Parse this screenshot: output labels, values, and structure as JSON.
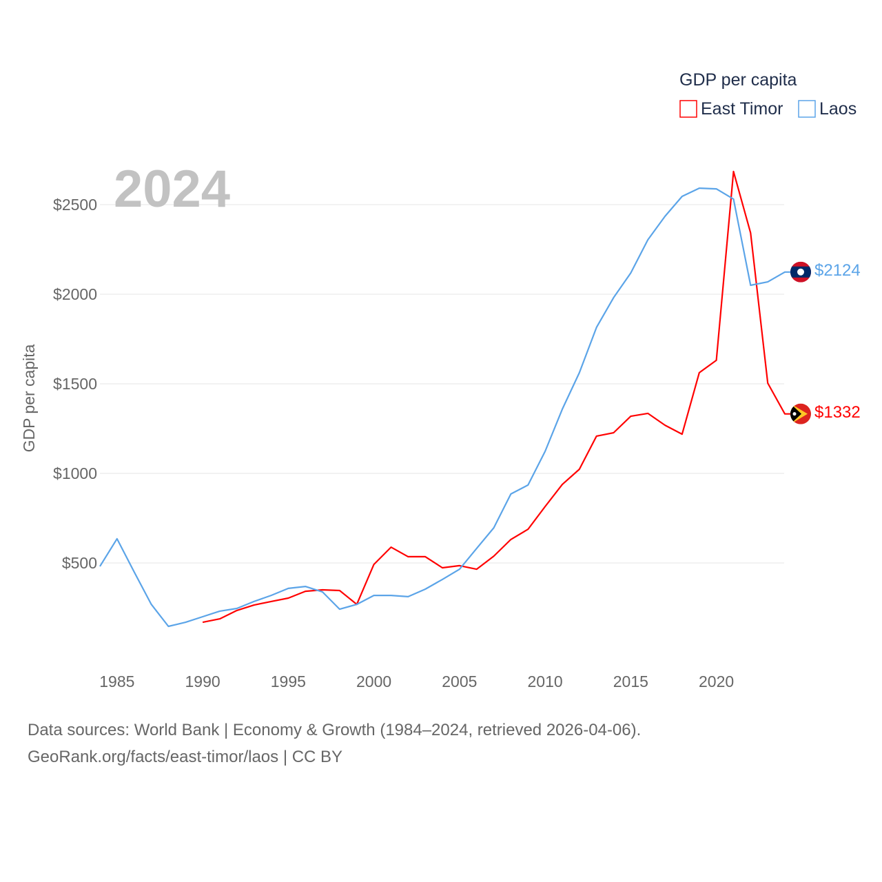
{
  "chart_data": {
    "type": "line",
    "title": "",
    "year_label": "2024",
    "xlabel": "",
    "ylabel": "GDP per capita",
    "xlim": [
      1984,
      2024
    ],
    "ylim": [
      0,
      2700
    ],
    "x_ticks": [
      "1985",
      "1990",
      "1995",
      "2000",
      "2005",
      "2010",
      "2015",
      "2020"
    ],
    "y_ticks": [
      {
        "v": 500,
        "label": "$500"
      },
      {
        "v": 1000,
        "label": "$1000"
      },
      {
        "v": 1500,
        "label": "$1500"
      },
      {
        "v": 2000,
        "label": "$2000"
      },
      {
        "v": 2500,
        "label": "$2500"
      }
    ],
    "grid": true,
    "legend": {
      "title": "GDP per capita",
      "placement": "top-right"
    },
    "series": [
      {
        "name": "East Timor",
        "color": "#ff0000",
        "end_label": "$1332",
        "start_year": 1990,
        "values": [
          169,
          188,
          235,
          265,
          285,
          304,
          342,
          350,
          346,
          269,
          492,
          588,
          535,
          535,
          473,
          485,
          465,
          538,
          631,
          688,
          815,
          938,
          1023,
          1208,
          1227,
          1319,
          1335,
          1269,
          1219,
          1562,
          1631,
          2685,
          2342,
          1504,
          1332
        ]
      },
      {
        "name": "Laos",
        "color": "#5ba4e8",
        "end_label": "$2124",
        "start_year": 1984,
        "values": [
          481,
          635,
          450,
          269,
          146,
          169,
          200,
          231,
          246,
          285,
          319,
          358,
          369,
          338,
          242,
          269,
          319,
          319,
          312,
          354,
          408,
          465,
          581,
          696,
          885,
          935,
          1123,
          1358,
          1562,
          1815,
          1981,
          2119,
          2304,
          2435,
          2546,
          2592,
          2588,
          2531,
          2050,
          2069,
          2124
        ]
      }
    ]
  },
  "footer": {
    "line1": "Data sources: World Bank | Economy & Growth (1984–2024, retrieved 2026-04-06).",
    "line2": "GeoRank.org/facts/east-timor/laos | CC BY"
  }
}
